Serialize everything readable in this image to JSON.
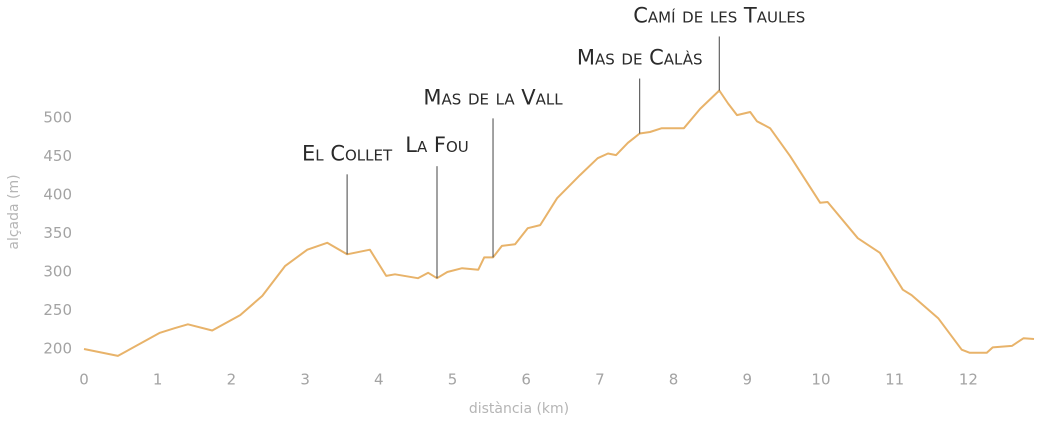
{
  "chart_data": {
    "type": "line",
    "xlabel": "distància (km)",
    "ylabel": "alçada (m)",
    "color": "#e8b36a",
    "x": [
      0,
      0.46,
      1.03,
      1.23,
      1.41,
      1.74,
      2.12,
      2.42,
      2.73,
      3.03,
      3.3,
      3.57,
      3.88,
      4.1,
      4.22,
      4.53,
      4.67,
      4.79,
      4.93,
      5.13,
      5.35,
      5.43,
      5.55,
      5.67,
      5.85,
      6.02,
      6.19,
      6.42,
      6.73,
      6.97,
      7.11,
      7.22,
      7.38,
      7.54,
      7.68,
      7.84,
      8.14,
      8.36,
      8.62,
      8.74,
      8.86,
      9.04,
      9.13,
      9.31,
      9.58,
      9.99,
      10.09,
      10.5,
      10.8,
      11.11,
      11.23,
      11.59,
      11.91,
      12.02,
      12.25,
      12.33,
      12.59,
      12.75,
      12.89
    ],
    "values": [
      200,
      191,
      221,
      227,
      232,
      224,
      244,
      269,
      308,
      329,
      338,
      323,
      329,
      295,
      297,
      292,
      299,
      292,
      300,
      305,
      303,
      319,
      319,
      334,
      336,
      357,
      361,
      396,
      426,
      448,
      454,
      452,
      468,
      480,
      482,
      487,
      487,
      512,
      536,
      519,
      504,
      508,
      496,
      487,
      451,
      390,
      391,
      344,
      325,
      277,
      270,
      240,
      199,
      195,
      195,
      202,
      204,
      214,
      213
    ],
    "xlim": [
      0,
      12.9
    ],
    "ylim": [
      185,
      560
    ],
    "xticks": [
      0,
      1,
      2,
      3,
      4,
      5,
      6,
      7,
      8,
      9,
      10,
      11,
      12
    ],
    "yticks": [
      200,
      250,
      300,
      350,
      400,
      450,
      500
    ],
    "annotations": [
      {
        "text": "El Collet",
        "x": 3.57,
        "y": 323
      },
      {
        "text": "La Fou",
        "x": 4.79,
        "y": 292
      },
      {
        "text": "Mas de la Vall",
        "x": 5.55,
        "y": 319
      },
      {
        "text": "Mas de Calàs",
        "x": 7.54,
        "y": 480
      },
      {
        "text": "Camí de les Taules",
        "x": 8.62,
        "y": 536
      }
    ]
  }
}
